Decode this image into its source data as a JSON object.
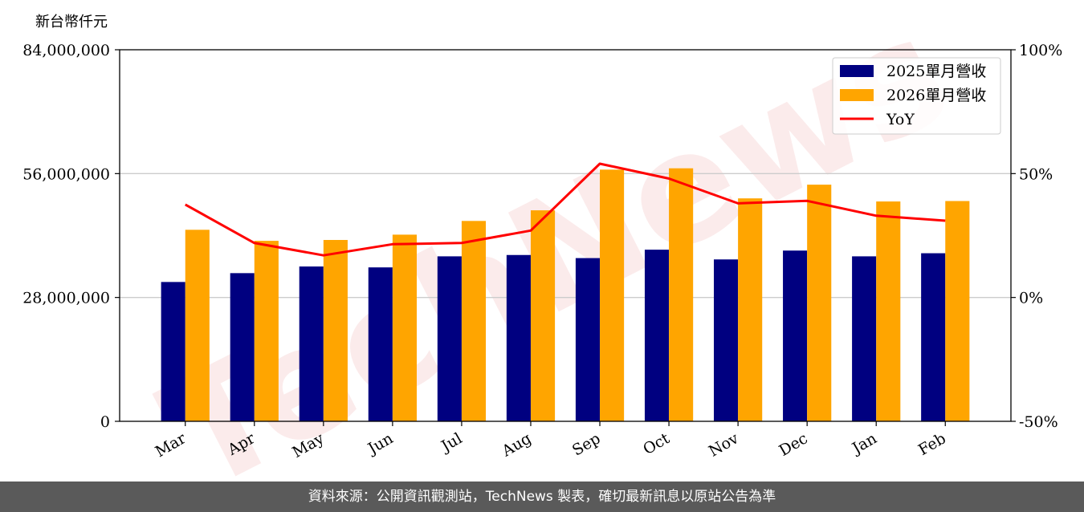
{
  "watermark": "TechNews",
  "footer": {
    "text": "資料來源：公開資訊觀測站，TechNews 製表，確切最新訊息以原站公告為準"
  },
  "chart_data": {
    "type": "bar",
    "unit_label": "新台幣仟元",
    "categories": [
      "Mar",
      "Apr",
      "May",
      "Jun",
      "Jul",
      "Aug",
      "Sep",
      "Oct",
      "Nov",
      "Dec",
      "Jan",
      "Feb"
    ],
    "series": [
      {
        "name": "2025單月營收",
        "type": "bar",
        "axis": "left",
        "color": "#000080",
        "values": [
          31500000,
          33500000,
          35000000,
          34800000,
          37300000,
          37600000,
          36900000,
          38800000,
          36600000,
          38600000,
          37300000,
          38000000
        ]
      },
      {
        "name": "2026單月營收",
        "type": "bar",
        "axis": "left",
        "color": "#ffa500",
        "values": [
          43300000,
          40800000,
          41000000,
          42200000,
          45300000,
          47700000,
          56900000,
          57200000,
          50400000,
          53500000,
          49700000,
          49800000
        ]
      },
      {
        "name": "YoY",
        "type": "line",
        "axis": "right",
        "color": "#ff0000",
        "values": [
          37.5,
          22,
          17,
          21.5,
          22,
          27,
          54,
          48,
          38,
          39,
          33,
          31
        ]
      }
    ],
    "y_left": {
      "range": [
        0,
        84000000
      ],
      "ticks": [
        0,
        28000000,
        56000000,
        84000000
      ],
      "tick_labels": [
        "0",
        "28,000,000",
        "56,000,000",
        "84,000,000"
      ]
    },
    "y_right": {
      "range": [
        -50,
        100
      ],
      "ticks": [
        -50,
        0,
        50,
        100
      ],
      "tick_labels": [
        "-50%",
        "0%",
        "50%",
        "100%"
      ]
    },
    "grid": "horizontal",
    "legend_position": "top-right"
  }
}
